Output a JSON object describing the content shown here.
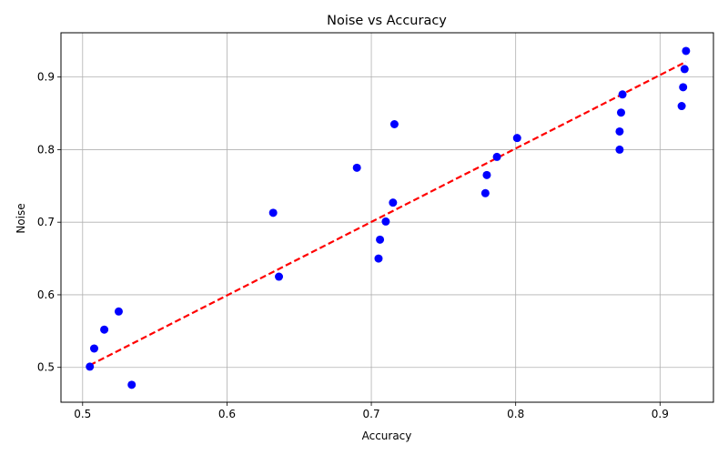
{
  "chart_data": {
    "type": "scatter",
    "title": "Noise vs  Accuracy",
    "xlabel": "Accuracy",
    "ylabel": "Noise",
    "xlim": [
      0.485,
      0.937
    ],
    "ylim": [
      0.452,
      0.961
    ],
    "xticks": [
      0.5,
      0.6,
      0.7,
      0.8,
      0.9
    ],
    "xtick_labels": [
      "0.5",
      "0.6",
      "0.7",
      "0.8",
      "0.9"
    ],
    "yticks": [
      0.5,
      0.6,
      0.7,
      0.8,
      0.9
    ],
    "ytick_labels": [
      "0.5",
      "0.6",
      "0.7",
      "0.8",
      "0.9"
    ],
    "grid": true,
    "point_color": "#0000ff",
    "trend_color": "#ff0000",
    "trend_line": {
      "style": "dashed",
      "x": [
        0.505,
        0.918
      ],
      "y": [
        0.503,
        0.921
      ]
    },
    "points": [
      {
        "x": 0.505,
        "y": 0.501
      },
      {
        "x": 0.508,
        "y": 0.526
      },
      {
        "x": 0.515,
        "y": 0.552
      },
      {
        "x": 0.525,
        "y": 0.577
      },
      {
        "x": 0.534,
        "y": 0.476
      },
      {
        "x": 0.632,
        "y": 0.713
      },
      {
        "x": 0.636,
        "y": 0.625
      },
      {
        "x": 0.69,
        "y": 0.775
      },
      {
        "x": 0.705,
        "y": 0.65
      },
      {
        "x": 0.706,
        "y": 0.676
      },
      {
        "x": 0.71,
        "y": 0.701
      },
      {
        "x": 0.715,
        "y": 0.727
      },
      {
        "x": 0.716,
        "y": 0.835
      },
      {
        "x": 0.779,
        "y": 0.74
      },
      {
        "x": 0.78,
        "y": 0.765
      },
      {
        "x": 0.787,
        "y": 0.79
      },
      {
        "x": 0.801,
        "y": 0.816
      },
      {
        "x": 0.872,
        "y": 0.8
      },
      {
        "x": 0.872,
        "y": 0.825
      },
      {
        "x": 0.873,
        "y": 0.851
      },
      {
        "x": 0.874,
        "y": 0.876
      },
      {
        "x": 0.915,
        "y": 0.86
      },
      {
        "x": 0.916,
        "y": 0.886
      },
      {
        "x": 0.917,
        "y": 0.911
      },
      {
        "x": 0.918,
        "y": 0.936
      }
    ]
  }
}
